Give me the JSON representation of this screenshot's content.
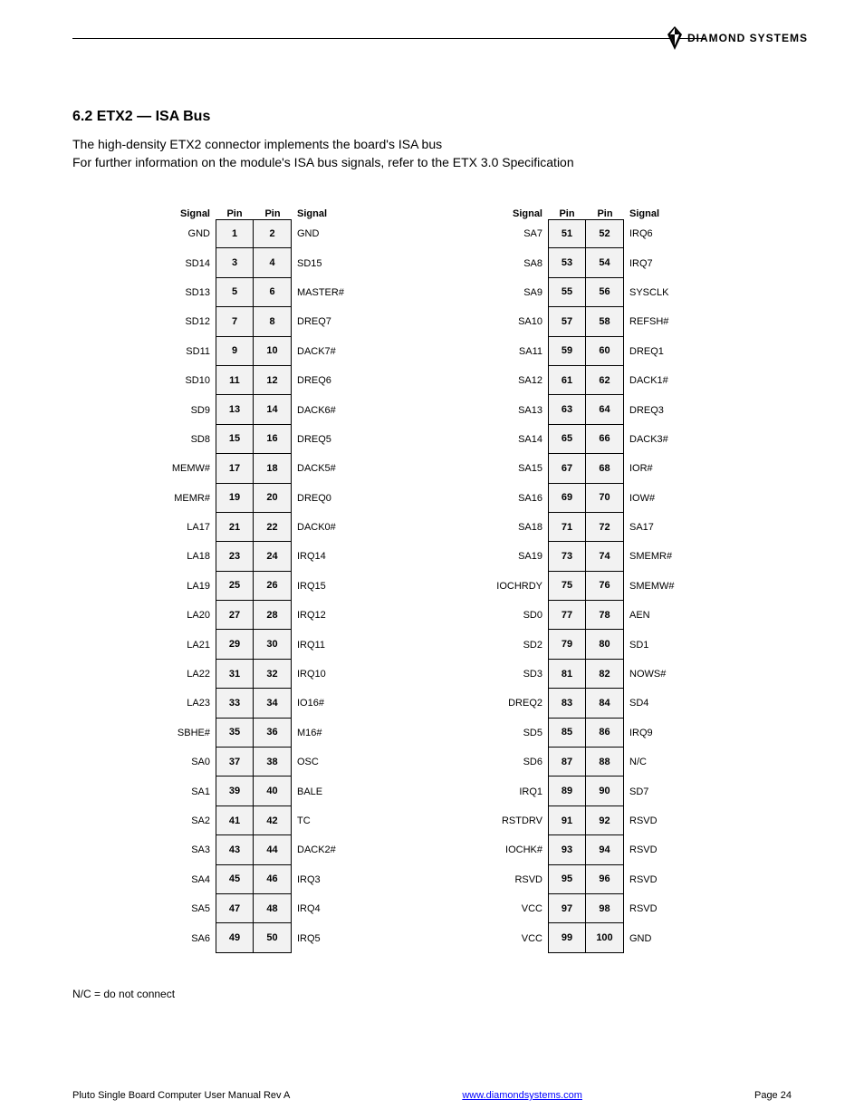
{
  "logo_text": "DIAMOND SYSTEMS",
  "section_title": "6.2 ETX2 — ISA Bus",
  "intro_line1_prefix": "The ",
  "intro_line1_highlight": "high-density",
  "intro_line1_suffix": " ETX2 connector implements the board's ISA bus",
  "intro_line2": "For further information on the module's ISA bus signals, refer to the ETX 3.0 Specification",
  "header": {
    "signal_l": "Signal",
    "pin": "Pin",
    "signal_r": "Signal"
  },
  "left_table": [
    {
      "sl": "GND",
      "pl": "1",
      "pr": "2",
      "sr": "GND"
    },
    {
      "sl": "SD14",
      "pl": "3",
      "pr": "4",
      "sr": "SD15"
    },
    {
      "sl": "SD13",
      "pl": "5",
      "pr": "6",
      "sr": "MASTER#"
    },
    {
      "sl": "SD12",
      "pl": "7",
      "pr": "8",
      "sr": "DREQ7"
    },
    {
      "sl": "SD11",
      "pl": "9",
      "pr": "10",
      "sr": "DACK7#"
    },
    {
      "sl": "SD10",
      "pl": "11",
      "pr": "12",
      "sr": "DREQ6"
    },
    {
      "sl": "SD9",
      "pl": "13",
      "pr": "14",
      "sr": "DACK6#"
    },
    {
      "sl": "SD8",
      "pl": "15",
      "pr": "16",
      "sr": "DREQ5"
    },
    {
      "sl": "MEMW#",
      "pl": "17",
      "pr": "18",
      "sr": "DACK5#"
    },
    {
      "sl": "MEMR#",
      "pl": "19",
      "pr": "20",
      "sr": "DREQ0"
    },
    {
      "sl": "LA17",
      "pl": "21",
      "pr": "22",
      "sr": "DACK0#"
    },
    {
      "sl": "LA18",
      "pl": "23",
      "pr": "24",
      "sr": "IRQ14"
    },
    {
      "sl": "LA19",
      "pl": "25",
      "pr": "26",
      "sr": "IRQ15"
    },
    {
      "sl": "LA20",
      "pl": "27",
      "pr": "28",
      "sr": "IRQ12"
    },
    {
      "sl": "LA21",
      "pl": "29",
      "pr": "30",
      "sr": "IRQ11"
    },
    {
      "sl": "LA22",
      "pl": "31",
      "pr": "32",
      "sr": "IRQ10"
    },
    {
      "sl": "LA23",
      "pl": "33",
      "pr": "34",
      "sr": "IO16#"
    },
    {
      "sl": "SBHE#",
      "pl": "35",
      "pr": "36",
      "sr": "M16#"
    },
    {
      "sl": "SA0",
      "pl": "37",
      "pr": "38",
      "sr": "OSC"
    },
    {
      "sl": "SA1",
      "pl": "39",
      "pr": "40",
      "sr": "BALE"
    },
    {
      "sl": "SA2",
      "pl": "41",
      "pr": "42",
      "sr": "TC"
    },
    {
      "sl": "SA3",
      "pl": "43",
      "pr": "44",
      "sr": "DACK2#"
    },
    {
      "sl": "SA4",
      "pl": "45",
      "pr": "46",
      "sr": "IRQ3"
    },
    {
      "sl": "SA5",
      "pl": "47",
      "pr": "48",
      "sr": "IRQ4"
    },
    {
      "sl": "SA6",
      "pl": "49",
      "pr": "50",
      "sr": "IRQ5"
    }
  ],
  "right_table": [
    {
      "sl": "SA7",
      "pl": "51",
      "pr": "52",
      "sr": "IRQ6"
    },
    {
      "sl": "SA8",
      "pl": "53",
      "pr": "54",
      "sr": "IRQ7"
    },
    {
      "sl": "SA9",
      "pl": "55",
      "pr": "56",
      "sr": "SYSCLK"
    },
    {
      "sl": "SA10",
      "pl": "57",
      "pr": "58",
      "sr": "REFSH#"
    },
    {
      "sl": "SA11",
      "pl": "59",
      "pr": "60",
      "sr": "DREQ1"
    },
    {
      "sl": "SA12",
      "pl": "61",
      "pr": "62",
      "sr": "DACK1#"
    },
    {
      "sl": "SA13",
      "pl": "63",
      "pr": "64",
      "sr": "DREQ3"
    },
    {
      "sl": "SA14",
      "pl": "65",
      "pr": "66",
      "sr": "DACK3#"
    },
    {
      "sl": "SA15",
      "pl": "67",
      "pr": "68",
      "sr": "IOR#"
    },
    {
      "sl": "SA16",
      "pl": "69",
      "pr": "70",
      "sr": "IOW#"
    },
    {
      "sl": "SA18",
      "pl": "71",
      "pr": "72",
      "sr": "SA17"
    },
    {
      "sl": "SA19",
      "pl": "73",
      "pr": "74",
      "sr": "SMEMR#"
    },
    {
      "sl": "IOCHRDY",
      "pl": "75",
      "pr": "76",
      "sr": "SMEMW#"
    },
    {
      "sl": "SD0",
      "pl": "77",
      "pr": "78",
      "sr": "AEN"
    },
    {
      "sl": "SD2",
      "pl": "79",
      "pr": "80",
      "sr": "SD1"
    },
    {
      "sl": "SD3",
      "pl": "81",
      "pr": "82",
      "sr": "NOWS#"
    },
    {
      "sl": "DREQ2",
      "pl": "83",
      "pr": "84",
      "sr": "SD4"
    },
    {
      "sl": "SD5",
      "pl": "85",
      "pr": "86",
      "sr": "IRQ9"
    },
    {
      "sl": "SD6",
      "pl": "87",
      "pr": "88",
      "sr": "N/C"
    },
    {
      "sl": "IRQ1",
      "pl": "89",
      "pr": "90",
      "sr": "SD7"
    },
    {
      "sl": "RSTDRV",
      "pl": "91",
      "pr": "92",
      "sr": "RSVD"
    },
    {
      "sl": "IOCHK#",
      "pl": "93",
      "pr": "94",
      "sr": "RSVD"
    },
    {
      "sl": "RSVD",
      "pl": "95",
      "pr": "96",
      "sr": "RSVD"
    },
    {
      "sl": "VCC",
      "pl": "97",
      "pr": "98",
      "sr": "RSVD"
    },
    {
      "sl": "VCC",
      "pl": "99",
      "pr": "100",
      "sr": "GND"
    }
  ],
  "nc_note": "N/C = do not connect",
  "footer_left": "Pluto Single Board Computer User Manual Rev A",
  "footer_link": "www.diamondsystems.com",
  "footer_page_label": "Page",
  "footer_page_num": " 24",
  "colors": {
    "text": "#000000",
    "bg": "#ffffff",
    "cell_bg": "#f2f2f2",
    "link": "#0000ff"
  }
}
